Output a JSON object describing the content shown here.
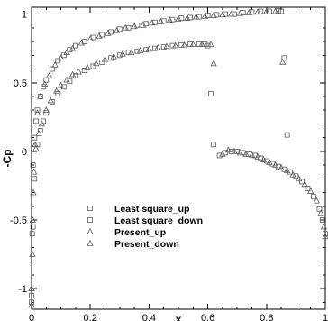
{
  "chart_data": {
    "type": "scatter",
    "title": "",
    "xlabel": "x",
    "ylabel": "-Cp",
    "xlim": [
      0,
      1
    ],
    "ylim": [
      -1.15,
      1.05
    ],
    "xticks": [
      0,
      0.2,
      0.4,
      0.6,
      0.8,
      1
    ],
    "xtick_labels": [
      "0",
      "0.2",
      "0.4",
      "0.6",
      "0.8",
      "1"
    ],
    "yticks": [
      -1,
      -0.5,
      0,
      0.5,
      1
    ],
    "ytick_labels": [
      "-1",
      "-0.5",
      "0",
      "0.5",
      "1"
    ],
    "grid": false,
    "legend_position": "lower-left",
    "colors": {
      "marker": "#5a5a5a",
      "axis": "#000000"
    },
    "series": [
      {
        "name": "Least square_up",
        "marker": "square",
        "x": [
          0.0,
          0.002,
          0.005,
          0.01,
          0.015,
          0.02,
          0.03,
          0.04,
          0.05,
          0.07,
          0.09,
          0.11,
          0.13,
          0.15,
          0.18,
          0.21,
          0.24,
          0.27,
          0.3,
          0.33,
          0.36,
          0.39,
          0.42,
          0.45,
          0.48,
          0.51,
          0.54,
          0.57,
          0.6,
          0.63,
          0.66,
          0.69,
          0.72,
          0.75,
          0.78,
          0.81,
          0.84,
          0.85,
          0.86
        ],
        "y": [
          -1.1,
          -0.6,
          -0.1,
          0.1,
          0.22,
          0.3,
          0.4,
          0.47,
          0.52,
          0.6,
          0.66,
          0.7,
          0.74,
          0.77,
          0.8,
          0.83,
          0.85,
          0.87,
          0.89,
          0.9,
          0.92,
          0.93,
          0.94,
          0.95,
          0.96,
          0.97,
          0.975,
          0.98,
          0.99,
          0.995,
          1.0,
          1.0,
          1.01,
          1.015,
          1.02,
          1.02,
          1.025,
          1.02,
          0.68
        ]
      },
      {
        "name": "Least square_down",
        "marker": "square",
        "x": [
          0.0,
          0.005,
          0.01,
          0.02,
          0.03,
          0.04,
          0.05,
          0.07,
          0.09,
          0.11,
          0.13,
          0.15,
          0.18,
          0.21,
          0.24,
          0.27,
          0.3,
          0.33,
          0.36,
          0.39,
          0.42,
          0.45,
          0.48,
          0.51,
          0.54,
          0.57,
          0.59,
          0.6,
          0.61,
          0.62,
          0.64,
          0.66,
          0.68,
          0.7,
          0.72,
          0.74,
          0.76,
          0.78,
          0.8,
          0.82,
          0.84,
          0.86,
          0.88,
          0.9,
          0.92,
          0.94,
          0.96,
          0.98,
          0.99,
          1.0,
          0.87
        ],
        "y": [
          -1.05,
          -0.55,
          -0.2,
          0.05,
          0.15,
          0.22,
          0.28,
          0.36,
          0.42,
          0.47,
          0.51,
          0.55,
          0.59,
          0.62,
          0.65,
          0.68,
          0.7,
          0.72,
          0.73,
          0.74,
          0.75,
          0.76,
          0.77,
          0.775,
          0.78,
          0.78,
          0.78,
          0.77,
          0.42,
          0.05,
          -0.03,
          -0.01,
          0.0,
          0.0,
          -0.01,
          -0.02,
          -0.03,
          -0.05,
          -0.07,
          -0.09,
          -0.11,
          -0.13,
          -0.15,
          -0.18,
          -0.22,
          -0.27,
          -0.33,
          -0.42,
          -0.5,
          -0.6,
          0.12
        ]
      },
      {
        "name": "Present_up",
        "marker": "triangle",
        "x": [
          0.0,
          0.003,
          0.006,
          0.012,
          0.02,
          0.03,
          0.045,
          0.06,
          0.08,
          0.1,
          0.12,
          0.14,
          0.17,
          0.2,
          0.23,
          0.26,
          0.29,
          0.32,
          0.35,
          0.38,
          0.41,
          0.44,
          0.47,
          0.5,
          0.53,
          0.56,
          0.59,
          0.62,
          0.65,
          0.68,
          0.71,
          0.74,
          0.77,
          0.8,
          0.83,
          0.855
        ],
        "y": [
          -1.12,
          -0.75,
          -0.3,
          0.05,
          0.28,
          0.4,
          0.49,
          0.55,
          0.63,
          0.68,
          0.72,
          0.75,
          0.79,
          0.82,
          0.84,
          0.86,
          0.88,
          0.9,
          0.91,
          0.92,
          0.935,
          0.945,
          0.955,
          0.965,
          0.97,
          0.98,
          0.985,
          0.99,
          0.995,
          1.0,
          1.005,
          1.01,
          1.015,
          1.02,
          1.02,
          0.65
        ]
      },
      {
        "name": "Present_down",
        "marker": "triangle",
        "x": [
          0.0,
          0.004,
          0.008,
          0.015,
          0.025,
          0.035,
          0.05,
          0.065,
          0.085,
          0.1,
          0.12,
          0.14,
          0.16,
          0.19,
          0.22,
          0.25,
          0.28,
          0.31,
          0.34,
          0.37,
          0.4,
          0.43,
          0.46,
          0.49,
          0.52,
          0.55,
          0.58,
          0.61,
          0.62,
          0.65,
          0.67,
          0.69,
          0.71,
          0.73,
          0.75,
          0.77,
          0.79,
          0.81,
          0.83,
          0.85,
          0.87,
          0.89,
          0.91,
          0.93,
          0.95,
          0.97,
          0.985,
          0.995,
          1.0
        ],
        "y": [
          -1.0,
          -0.5,
          -0.15,
          0.02,
          0.13,
          0.2,
          0.3,
          0.37,
          0.44,
          0.48,
          0.52,
          0.56,
          0.58,
          0.61,
          0.64,
          0.67,
          0.69,
          0.71,
          0.72,
          0.735,
          0.745,
          0.755,
          0.765,
          0.77,
          0.775,
          0.78,
          0.78,
          0.78,
          0.64,
          -0.02,
          0.01,
          0.0,
          -0.01,
          -0.02,
          -0.025,
          -0.04,
          -0.06,
          -0.08,
          -0.1,
          -0.12,
          -0.14,
          -0.17,
          -0.2,
          -0.24,
          -0.29,
          -0.36,
          -0.45,
          -0.55,
          -0.62
        ]
      }
    ]
  }
}
